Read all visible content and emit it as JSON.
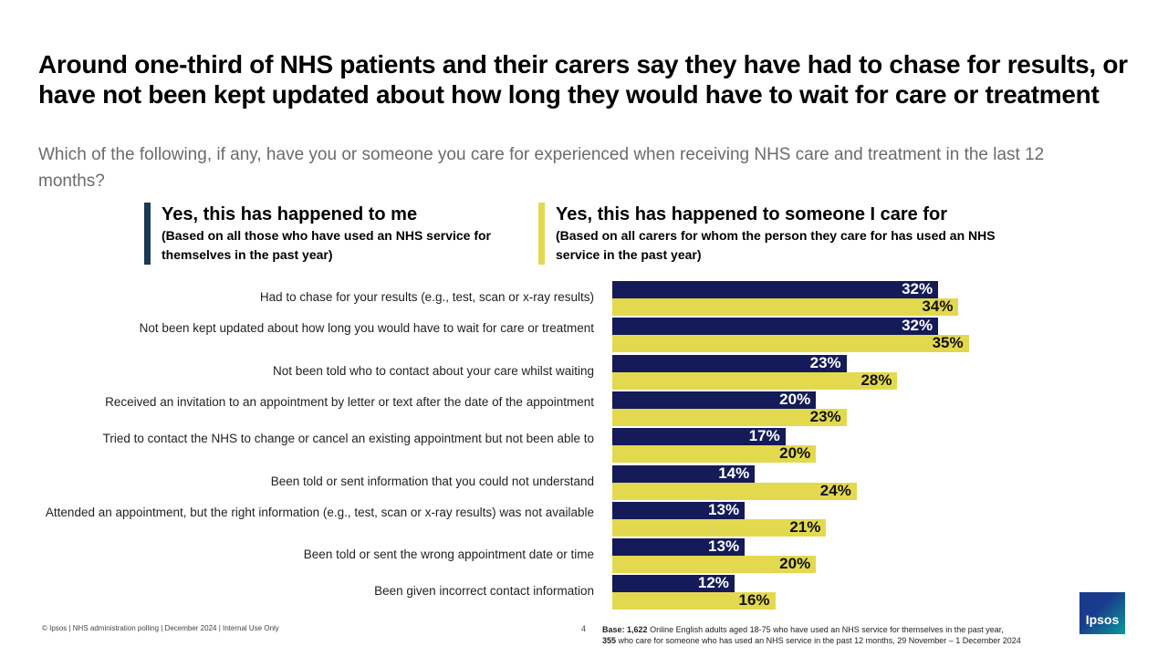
{
  "title": "Around one-third of NHS patients and their carers say they have had to chase for results, or have not been kept updated about how long they would have to wait for care or treatment",
  "subtitle": "Which of the following, if any, have you or someone you care for experienced when receiving NHS care and treatment in the last 12 months?",
  "footer": "© Ipsos | NHS administration polling | December 2024 | Internal Use Only",
  "page_number": "4",
  "base": {
    "label": "Base:",
    "n1": "1,622",
    "text1": " Online English adults aged 18-75 who have used an NHS service for themselves in the past year,",
    "n2": "355",
    "text2": " who care for someone who has used an NHS service in the past 12 months, 29 November – 1 December 2024"
  },
  "logo": "Ipsos",
  "chart_data": {
    "type": "bar",
    "orientation": "horizontal",
    "xlim": [
      0,
      100
    ],
    "grid": false,
    "legend_placement": "top",
    "series": [
      {
        "name": "Yes, this has happened to me",
        "note": "(Based on all those who have used an NHS service for themselves in the past year)",
        "color": "#141b58",
        "values": [
          32,
          32,
          23,
          20,
          17,
          14,
          13,
          13,
          12
        ]
      },
      {
        "name": "Yes, this has happened to someone I care for",
        "note": "(Based on all carers for whom the person they care for has used an NHS service in the past year)",
        "color": "#e3d94e",
        "values": [
          34,
          35,
          28,
          23,
          20,
          24,
          21,
          20,
          16
        ]
      }
    ],
    "categories": [
      "Had to chase for your results (e.g., test, scan or x-ray results)",
      "Not been kept updated about how long you would have to wait for care or treatment",
      "Not been told who to contact about your care whilst waiting",
      "Received an invitation to an appointment by letter or text after the date of the appointment",
      "Tried to contact the NHS to change or cancel an existing appointment but not been able to",
      "Been told or sent information that you could not understand",
      "Attended an appointment, but the right information (e.g., test, scan or x-ray results) was not available",
      "Been told or sent the wrong appointment date or time",
      "Been given incorrect contact information"
    ]
  }
}
